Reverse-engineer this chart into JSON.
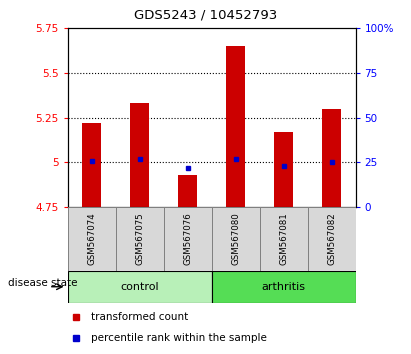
{
  "title": "GDS5243 / 10452793",
  "samples": [
    "GSM567074",
    "GSM567075",
    "GSM567076",
    "GSM567080",
    "GSM567081",
    "GSM567082"
  ],
  "bar_bottoms": [
    4.75,
    4.75,
    4.75,
    4.75,
    4.75,
    4.75
  ],
  "bar_tops": [
    5.22,
    5.33,
    4.93,
    5.65,
    5.17,
    5.3
  ],
  "percentile_ranks": [
    26,
    27,
    22,
    27,
    23,
    25
  ],
  "ylim_left": [
    4.75,
    5.75
  ],
  "ylim_right": [
    0,
    100
  ],
  "yticks_left": [
    4.75,
    5.0,
    5.25,
    5.5,
    5.75
  ],
  "yticks_right": [
    0,
    25,
    50,
    75,
    100
  ],
  "ytick_labels_left": [
    "4.75",
    "5",
    "5.25",
    "5.5",
    "5.75"
  ],
  "ytick_labels_right": [
    "0",
    "25",
    "50",
    "75",
    "100%"
  ],
  "hlines": [
    5.0,
    5.25,
    5.5
  ],
  "bar_color": "#cc0000",
  "dot_color": "#0000cc",
  "groups": [
    {
      "label": "control",
      "color": "#b8f0b8"
    },
    {
      "label": "arthritis",
      "color": "#55dd55"
    }
  ],
  "group_label": "disease state",
  "legend_red_label": "transformed count",
  "legend_blue_label": "percentile rank within the sample",
  "sample_bg_color": "#d8d8d8",
  "plot_bg": "#ffffff"
}
